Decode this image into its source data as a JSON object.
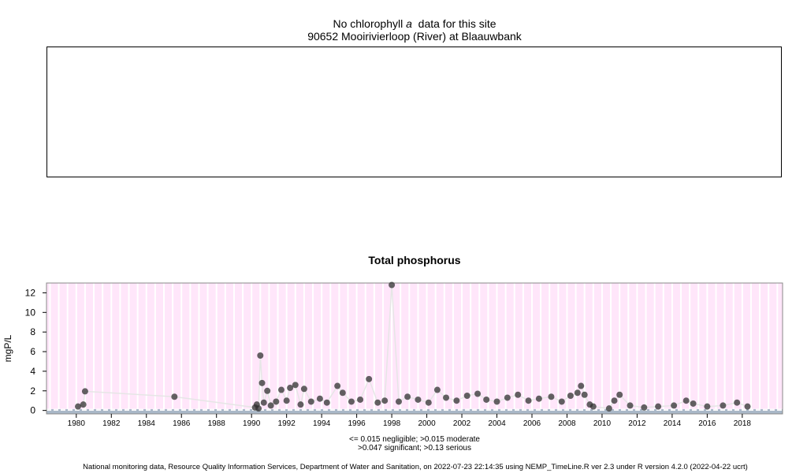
{
  "header": {
    "title_prefix": "No chlorophyll",
    "title_italic": "a",
    "title_suffix": "data for this site",
    "site": "90652 Mooirivierloop (River) at Blaauwbank"
  },
  "footnote": {
    "line1": "<= 0.015 negligible; >0.015 moderate",
    "line2": ">0.047 significant; >0.13 serious"
  },
  "credit": "National monitoring data, Resource Quality Information Services, Department of Water and Sanitation, on 2022-07-23 22:14:35 using NEMP_TimeLine.R ver 2.3 under R version 4.2.0 (2022-04-22 ucrt)",
  "colors": {
    "background_band": "#ffe6fa",
    "low_band": "#aab8c8",
    "point": "#303030",
    "line": "#e6e6e6",
    "grid": "#ffffff"
  },
  "chart_data": {
    "type": "scatter",
    "title": "Total phosphorus",
    "xlabel": "",
    "ylabel": "mgP/L",
    "xlim": [
      1978.3,
      2020.3
    ],
    "ylim": [
      -0.35,
      13.0
    ],
    "xticks": [
      1980,
      1982,
      1984,
      1986,
      1988,
      1990,
      1992,
      1994,
      1996,
      1998,
      2000,
      2002,
      2004,
      2006,
      2008,
      2010,
      2012,
      2014,
      2016,
      2018
    ],
    "yticks": [
      0,
      2,
      4,
      6,
      8,
      10,
      12
    ],
    "grid": true,
    "reference_lines": [
      0.015,
      0.047,
      0.13
    ],
    "series": [
      {
        "values": [
          {
            "x": 1980.1,
            "y": 0.4
          },
          {
            "x": 1980.4,
            "y": 0.6
          },
          {
            "x": 1980.5,
            "y": 1.95
          },
          {
            "x": 1985.6,
            "y": 1.4
          },
          {
            "x": 1990.2,
            "y": 0.3
          },
          {
            "x": 1990.3,
            "y": 0.6
          },
          {
            "x": 1990.4,
            "y": 0.2
          },
          {
            "x": 1990.5,
            "y": 5.6
          },
          {
            "x": 1990.6,
            "y": 2.8
          },
          {
            "x": 1990.7,
            "y": 0.8
          },
          {
            "x": 1990.9,
            "y": 2.0
          },
          {
            "x": 1991.1,
            "y": 0.5
          },
          {
            "x": 1991.4,
            "y": 0.9
          },
          {
            "x": 1991.7,
            "y": 2.1
          },
          {
            "x": 1992.0,
            "y": 1.0
          },
          {
            "x": 1992.2,
            "y": 2.3
          },
          {
            "x": 1992.5,
            "y": 2.6
          },
          {
            "x": 1992.8,
            "y": 0.6
          },
          {
            "x": 1993.0,
            "y": 2.2
          },
          {
            "x": 1993.4,
            "y": 0.9
          },
          {
            "x": 1993.9,
            "y": 1.2
          },
          {
            "x": 1994.3,
            "y": 0.8
          },
          {
            "x": 1994.9,
            "y": 2.5
          },
          {
            "x": 1995.2,
            "y": 1.8
          },
          {
            "x": 1995.7,
            "y": 0.9
          },
          {
            "x": 1996.2,
            "y": 1.1
          },
          {
            "x": 1996.7,
            "y": 3.2
          },
          {
            "x": 1997.2,
            "y": 0.8
          },
          {
            "x": 1997.6,
            "y": 1.0
          },
          {
            "x": 1998.0,
            "y": 12.8
          },
          {
            "x": 1998.4,
            "y": 0.9
          },
          {
            "x": 1998.9,
            "y": 1.4
          },
          {
            "x": 1999.5,
            "y": 1.1
          },
          {
            "x": 2000.1,
            "y": 0.8
          },
          {
            "x": 2000.6,
            "y": 2.1
          },
          {
            "x": 2001.1,
            "y": 1.3
          },
          {
            "x": 2001.7,
            "y": 1.0
          },
          {
            "x": 2002.3,
            "y": 1.5
          },
          {
            "x": 2002.9,
            "y": 1.7
          },
          {
            "x": 2003.4,
            "y": 1.1
          },
          {
            "x": 2004.0,
            "y": 0.9
          },
          {
            "x": 2004.6,
            "y": 1.3
          },
          {
            "x": 2005.2,
            "y": 1.6
          },
          {
            "x": 2005.8,
            "y": 1.0
          },
          {
            "x": 2006.4,
            "y": 1.2
          },
          {
            "x": 2007.1,
            "y": 1.4
          },
          {
            "x": 2007.7,
            "y": 0.9
          },
          {
            "x": 2008.2,
            "y": 1.5
          },
          {
            "x": 2008.6,
            "y": 1.8
          },
          {
            "x": 2008.8,
            "y": 2.5
          },
          {
            "x": 2009.0,
            "y": 1.6
          },
          {
            "x": 2009.3,
            "y": 0.6
          },
          {
            "x": 2009.5,
            "y": 0.4
          },
          {
            "x": 2010.4,
            "y": 0.2
          },
          {
            "x": 2010.7,
            "y": 1.0
          },
          {
            "x": 2011.0,
            "y": 1.6
          },
          {
            "x": 2011.6,
            "y": 0.5
          },
          {
            "x": 2012.4,
            "y": 0.3
          },
          {
            "x": 2013.2,
            "y": 0.4
          },
          {
            "x": 2014.1,
            "y": 0.5
          },
          {
            "x": 2014.8,
            "y": 1.0
          },
          {
            "x": 2015.2,
            "y": 0.7
          },
          {
            "x": 2016.0,
            "y": 0.4
          },
          {
            "x": 2016.9,
            "y": 0.5
          },
          {
            "x": 2017.7,
            "y": 0.8
          },
          {
            "x": 2018.3,
            "y": 0.4
          }
        ]
      }
    ]
  }
}
